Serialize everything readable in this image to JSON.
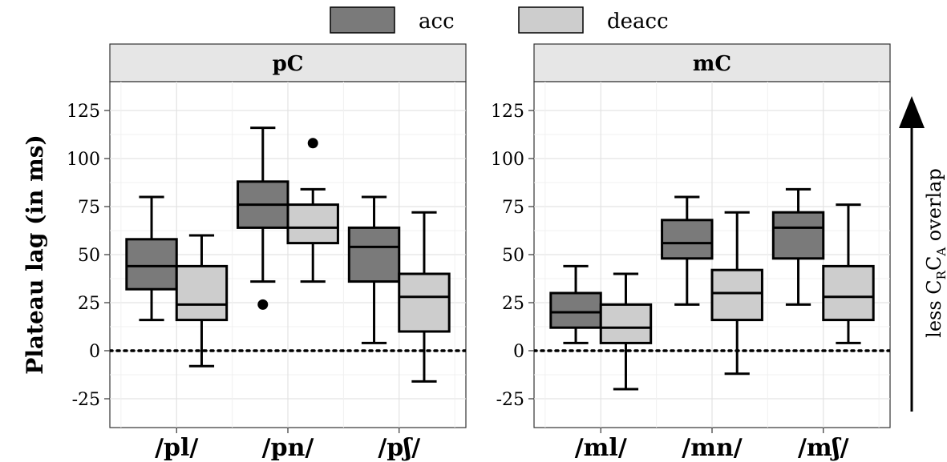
{
  "chart_data": {
    "type": "boxplot",
    "ylabel": "Plateau lag (in ms)",
    "ylim": [
      -40,
      140
    ],
    "yticks": [
      -25,
      0,
      25,
      50,
      75,
      100,
      125
    ],
    "reference_line": 0,
    "legend": [
      {
        "name": "acc",
        "color": "#7a7a7a"
      },
      {
        "name": "deacc",
        "color": "#cdcdcd"
      }
    ],
    "side_annotation": {
      "prefix": "less C",
      "sub1": "R",
      "mid": "C",
      "sub2": "A",
      "suffix": " overlap"
    },
    "panels": [
      {
        "strip": "pC",
        "groups": [
          {
            "label": "/pl/",
            "boxes": [
              {
                "series": "acc",
                "whisker_low": 16,
                "q1": 32,
                "median": 44,
                "q3": 58,
                "whisker_high": 80,
                "outliers": []
              },
              {
                "series": "deacc",
                "whisker_low": -8,
                "q1": 16,
                "median": 24,
                "q3": 44,
                "whisker_high": 60,
                "outliers": []
              }
            ]
          },
          {
            "label": "/pn/",
            "boxes": [
              {
                "series": "acc",
                "whisker_low": 36,
                "q1": 64,
                "median": 76,
                "q3": 88,
                "whisker_high": 116,
                "outliers": [
                  24
                ]
              },
              {
                "series": "deacc",
                "whisker_low": 36,
                "q1": 56,
                "median": 64,
                "q3": 76,
                "whisker_high": 84,
                "outliers": [
                  108
                ]
              }
            ]
          },
          {
            "label": "/pʃ/",
            "boxes": [
              {
                "series": "acc",
                "whisker_low": 4,
                "q1": 36,
                "median": 54,
                "q3": 64,
                "whisker_high": 80,
                "outliers": []
              },
              {
                "series": "deacc",
                "whisker_low": -16,
                "q1": 10,
                "median": 28,
                "q3": 40,
                "whisker_high": 72,
                "outliers": []
              }
            ]
          }
        ]
      },
      {
        "strip": "mC",
        "groups": [
          {
            "label": "/ml/",
            "boxes": [
              {
                "series": "acc",
                "whisker_low": 4,
                "q1": 12,
                "median": 20,
                "q3": 30,
                "whisker_high": 44,
                "outliers": []
              },
              {
                "series": "deacc",
                "whisker_low": -20,
                "q1": 4,
                "median": 12,
                "q3": 24,
                "whisker_high": 40,
                "outliers": []
              }
            ]
          },
          {
            "label": "/mn/",
            "boxes": [
              {
                "series": "acc",
                "whisker_low": 24,
                "q1": 48,
                "median": 56,
                "q3": 68,
                "whisker_high": 80,
                "outliers": []
              },
              {
                "series": "deacc",
                "whisker_low": -12,
                "q1": 16,
                "median": 30,
                "q3": 42,
                "whisker_high": 72,
                "outliers": []
              }
            ]
          },
          {
            "label": "/mʃ/",
            "boxes": [
              {
                "series": "acc",
                "whisker_low": 24,
                "q1": 48,
                "median": 64,
                "q3": 72,
                "whisker_high": 84,
                "outliers": []
              },
              {
                "series": "deacc",
                "whisker_low": 4,
                "q1": 16,
                "median": 28,
                "q3": 44,
                "whisker_high": 76,
                "outliers": []
              }
            ]
          }
        ]
      }
    ]
  }
}
